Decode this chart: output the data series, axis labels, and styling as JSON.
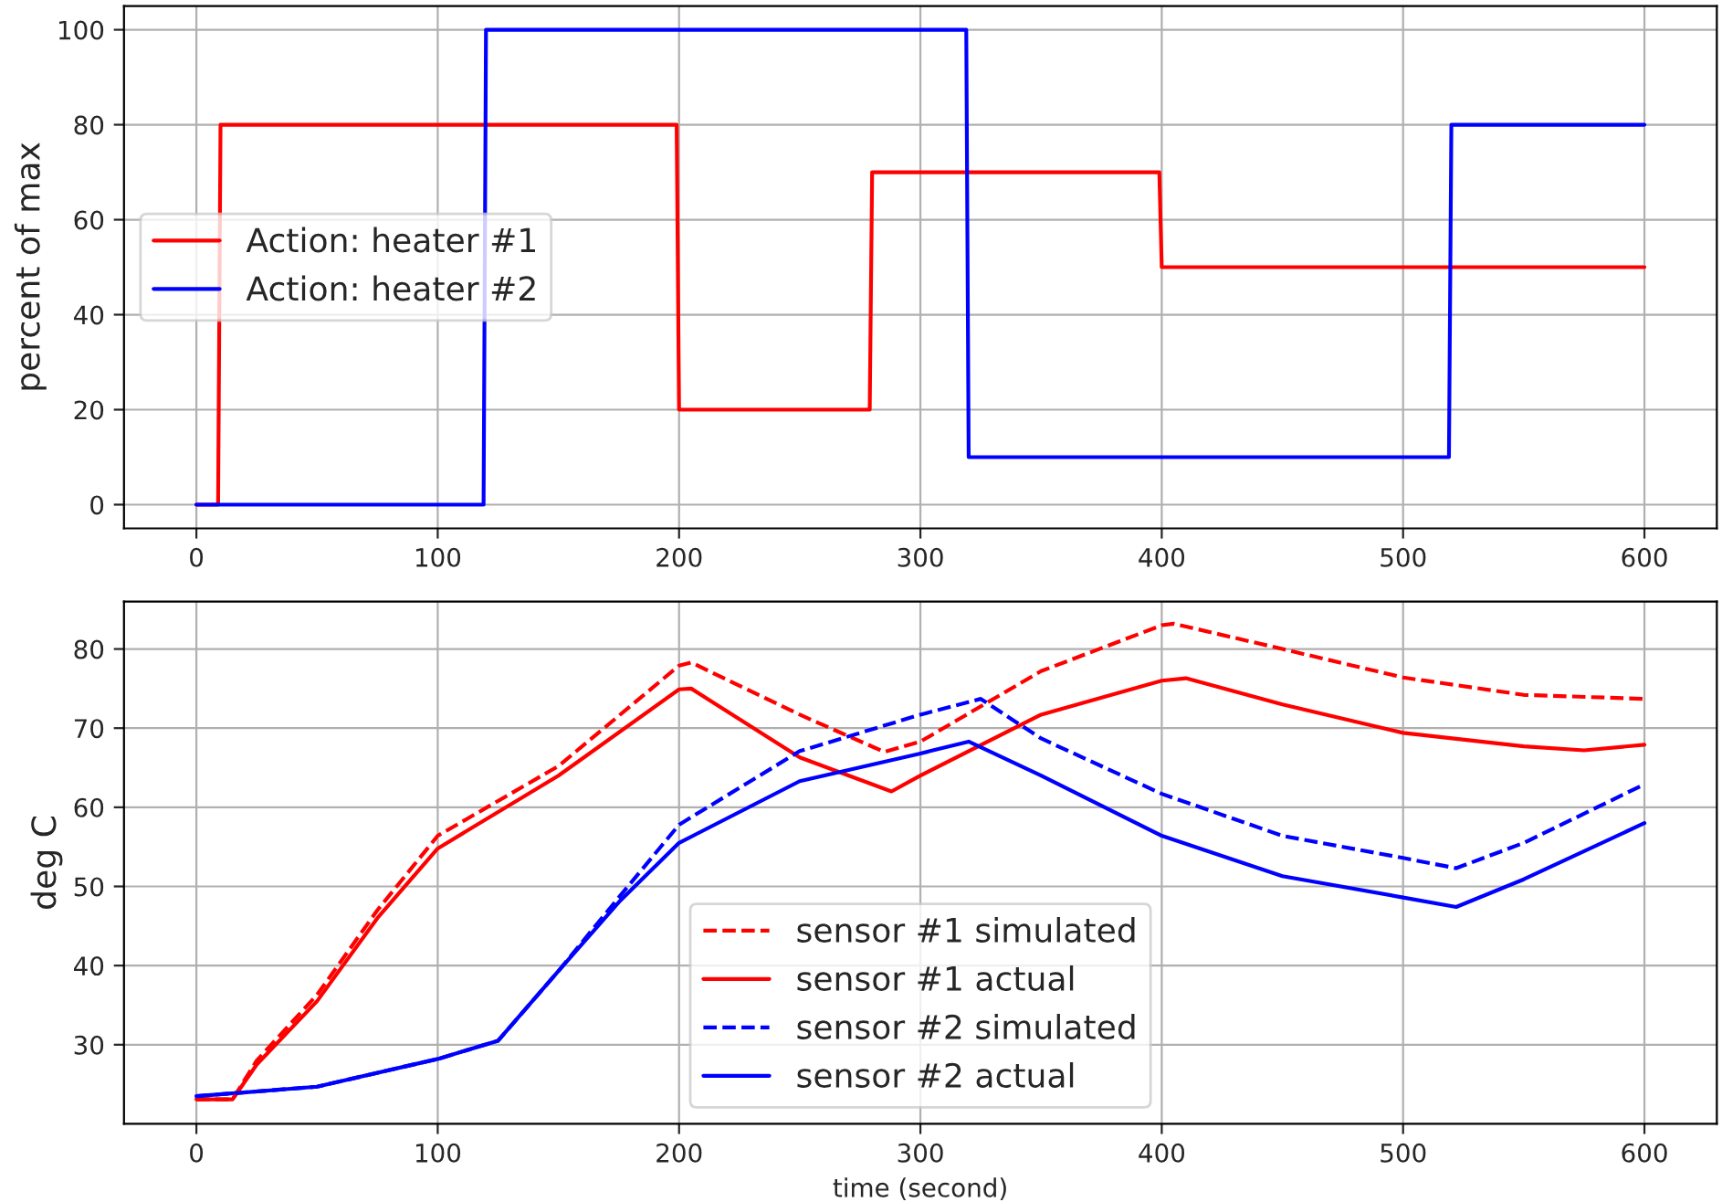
{
  "chart_data": [
    {
      "type": "line",
      "ylabel": "percent of max",
      "xlim": [
        -30,
        630
      ],
      "ylim": [
        -5,
        105
      ],
      "xticks": [
        0,
        100,
        200,
        300,
        400,
        500,
        600
      ],
      "yticks": [
        0,
        20,
        40,
        60,
        80,
        100
      ],
      "grid": true,
      "legend": "left",
      "series": [
        {
          "name": "Action: heater #1",
          "color": "#ff0000",
          "x": [
            0,
            9,
            10,
            199,
            200,
            279,
            280,
            399,
            400,
            600
          ],
          "values": [
            0,
            0,
            80,
            80,
            20,
            20,
            70,
            70,
            50,
            50
          ]
        },
        {
          "name": "Action: heater #2",
          "color": "#0000ff",
          "x": [
            0,
            119,
            120,
            319,
            320,
            519,
            520,
            600
          ],
          "values": [
            0,
            0,
            100,
            100,
            10,
            10,
            80,
            80
          ]
        }
      ]
    },
    {
      "type": "line",
      "xlabel": "time (second)",
      "ylabel": "deg C",
      "xlim": [
        -30,
        630
      ],
      "ylim": [
        20,
        86
      ],
      "xticks": [
        0,
        100,
        200,
        300,
        400,
        500,
        600
      ],
      "yticks": [
        30,
        40,
        50,
        60,
        70,
        80
      ],
      "grid": true,
      "legend": "bottom",
      "series": [
        {
          "name": "sensor #1 simulated",
          "color": "#ff0000",
          "line_style": "dashed",
          "x": [
            0,
            15,
            25,
            50,
            75,
            100,
            150,
            200,
            205,
            250,
            285,
            300,
            350,
            400,
            405,
            450,
            500,
            550,
            600
          ],
          "values": [
            23.1,
            23.1,
            28,
            36.3,
            47,
            56.4,
            65.2,
            77.9,
            78.3,
            71.7,
            67,
            68.3,
            77.2,
            83,
            83.2,
            80,
            76.4,
            74.2,
            73.7
          ]
        },
        {
          "name": "sensor #1 actual",
          "color": "#ff0000",
          "line_style": "solid",
          "x": [
            0,
            15,
            25,
            50,
            75,
            100,
            150,
            200,
            205,
            250,
            288,
            300,
            350,
            400,
            410,
            450,
            500,
            550,
            575,
            600
          ],
          "values": [
            23.1,
            23.1,
            27.5,
            35.5,
            46,
            54.8,
            64,
            74.9,
            75,
            66.3,
            62,
            64,
            71.7,
            76,
            76.3,
            73,
            69.4,
            67.7,
            67.2,
            67.9
          ]
        },
        {
          "name": "sensor #2 simulated",
          "color": "#0000ff",
          "line_style": "dashed",
          "x": [
            0,
            50,
            100,
            125,
            150,
            175,
            200,
            250,
            300,
            325,
            350,
            400,
            450,
            500,
            522,
            550,
            600
          ],
          "values": [
            23.5,
            24.7,
            28.2,
            30.5,
            39.3,
            48.6,
            57.8,
            67.1,
            71.7,
            73.7,
            68.7,
            61.7,
            56.4,
            53.6,
            52.3,
            55.5,
            62.9
          ]
        },
        {
          "name": "sensor #2 actual",
          "color": "#0000ff",
          "line_style": "solid",
          "x": [
            0,
            50,
            100,
            125,
            150,
            175,
            200,
            250,
            300,
            320,
            350,
            400,
            450,
            500,
            522,
            550,
            600
          ],
          "values": [
            23.5,
            24.7,
            28.2,
            30.5,
            39.3,
            48,
            55.5,
            63.3,
            66.8,
            68.3,
            64,
            56.4,
            51.3,
            48.6,
            47.4,
            50.9,
            58
          ]
        }
      ]
    }
  ]
}
